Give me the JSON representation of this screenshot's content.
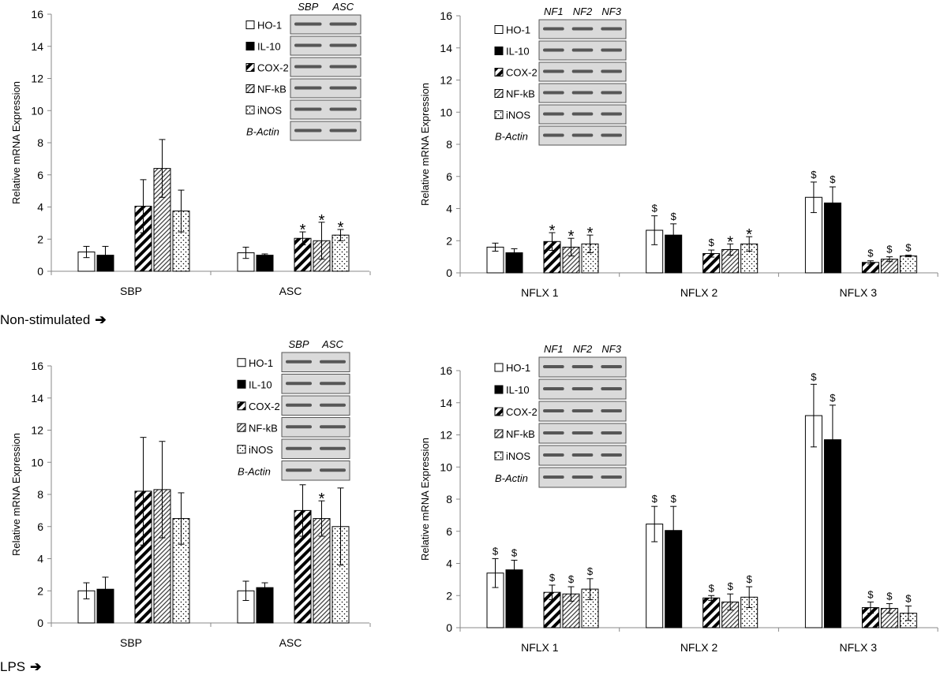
{
  "row_labels": {
    "top": "Non-stimulated",
    "bottom": "LPS",
    "arrow": "➔"
  },
  "colors": {
    "axis": "#888888",
    "bar_stroke": "#000000",
    "blot_bg": "#dadada",
    "band": "#2b2b2b"
  },
  "chart_data": [
    {
      "id": "A",
      "type": "bar",
      "row": "Non-stimulated",
      "ylabel": "Relative mRNA Expression",
      "ylim": [
        0,
        16
      ],
      "yticks": [
        0,
        2,
        4,
        6,
        8,
        10,
        12,
        14,
        16
      ],
      "categories": [
        "SBP",
        "ASC"
      ],
      "series": [
        {
          "name": "HO-1",
          "fill": "white",
          "values": [
            1.2,
            1.15
          ],
          "errors": [
            0.35,
            0.35
          ],
          "marks": [
            "",
            ""
          ]
        },
        {
          "name": "IL-10",
          "fill": "black",
          "values": [
            1.0,
            1.0
          ],
          "errors": [
            0.55,
            0.08
          ],
          "marks": [
            "",
            ""
          ]
        },
        {
          "name": "COX-2",
          "fill": "wide-hatch",
          "values": [
            4.05,
            2.05
          ],
          "errors": [
            1.65,
            0.4
          ],
          "marks": [
            "",
            "*"
          ]
        },
        {
          "name": "NF-kB",
          "fill": "fine-hatch",
          "values": [
            6.4,
            1.9
          ],
          "errors": [
            1.8,
            1.15
          ],
          "marks": [
            "",
            "*"
          ]
        },
        {
          "name": "iNOS",
          "fill": "dots",
          "values": [
            3.75,
            2.25
          ],
          "errors": [
            1.3,
            0.35
          ],
          "marks": [
            "",
            "*"
          ]
        }
      ],
      "blot": {
        "lanes": [
          "SBP",
          "ASC"
        ],
        "rows": [
          "HO-1",
          "IL-10",
          "COX-2",
          "NF-kB",
          "iNOS"
        ],
        "control": "B-Actin"
      }
    },
    {
      "id": "B",
      "type": "bar",
      "row": "Non-stimulated",
      "ylabel": "Relative mRNA Expression",
      "ylim": [
        0,
        16
      ],
      "yticks": [
        0,
        2,
        4,
        6,
        8,
        10,
        12,
        14,
        16
      ],
      "categories": [
        "NFLX 1",
        "NFLX 2",
        "NFLX 3"
      ],
      "series": [
        {
          "name": "HO-1",
          "fill": "white",
          "values": [
            1.6,
            2.65,
            4.7
          ],
          "errors": [
            0.25,
            0.9,
            0.95
          ],
          "marks": [
            "",
            "$",
            "$"
          ]
        },
        {
          "name": "IL-10",
          "fill": "black",
          "values": [
            1.25,
            2.35,
            4.35
          ],
          "errors": [
            0.25,
            0.7,
            1.0
          ],
          "marks": [
            "",
            "$",
            "$"
          ]
        },
        {
          "name": "COX-2",
          "fill": "wide-hatch",
          "values": [
            1.95,
            1.2,
            0.65
          ],
          "errors": [
            0.55,
            0.22,
            0.1
          ],
          "marks": [
            "*",
            "$",
            "$"
          ]
        },
        {
          "name": "NF-kB",
          "fill": "fine-hatch",
          "values": [
            1.6,
            1.45,
            0.85
          ],
          "errors": [
            0.55,
            0.35,
            0.15
          ],
          "marks": [
            "*",
            "*",
            "$"
          ]
        },
        {
          "name": "iNOS",
          "fill": "dots",
          "values": [
            1.8,
            1.8,
            1.05
          ],
          "errors": [
            0.55,
            0.45,
            0.05
          ],
          "marks": [
            "*",
            "*",
            "$"
          ]
        }
      ],
      "blot": {
        "lanes": [
          "NF1",
          "NF2",
          "NF3"
        ],
        "rows": [
          "HO-1",
          "IL-10",
          "COX-2",
          "NF-kB",
          "iNOS"
        ],
        "control": "B-Actin"
      }
    },
    {
      "id": "C",
      "type": "bar",
      "row": "LPS",
      "ylabel": "Relative mRNA Expression",
      "ylim": [
        0,
        16
      ],
      "yticks": [
        0,
        2,
        4,
        6,
        8,
        10,
        12,
        14,
        16
      ],
      "categories": [
        "SBP",
        "ASC"
      ],
      "series": [
        {
          "name": "HO-1",
          "fill": "white",
          "values": [
            2.0,
            2.0
          ],
          "errors": [
            0.5,
            0.6
          ],
          "marks": [
            "",
            ""
          ]
        },
        {
          "name": "IL-10",
          "fill": "black",
          "values": [
            2.1,
            2.2
          ],
          "errors": [
            0.75,
            0.3
          ],
          "marks": [
            "",
            ""
          ]
        },
        {
          "name": "COX-2",
          "fill": "wide-hatch",
          "values": [
            8.2,
            7.0
          ],
          "errors": [
            3.35,
            1.6
          ],
          "marks": [
            "",
            ""
          ]
        },
        {
          "name": "NF-kB",
          "fill": "fine-hatch",
          "values": [
            8.3,
            6.5
          ],
          "errors": [
            3.0,
            1.1
          ],
          "marks": [
            "",
            "*"
          ]
        },
        {
          "name": "iNOS",
          "fill": "dots",
          "values": [
            6.5,
            6.0
          ],
          "errors": [
            1.6,
            2.4
          ],
          "marks": [
            "",
            ""
          ]
        }
      ],
      "blot": {
        "lanes": [
          "SBP",
          "ASC"
        ],
        "rows": [
          "HO-1",
          "IL-10",
          "COX-2",
          "NF-kB",
          "iNOS"
        ],
        "control": "B-Actin"
      }
    },
    {
      "id": "D",
      "type": "bar",
      "row": "LPS",
      "ylabel": "Relative mRNA Expression",
      "ylim": [
        0,
        16
      ],
      "yticks": [
        0,
        2,
        4,
        6,
        8,
        10,
        12,
        14,
        16
      ],
      "categories": [
        "NFLX 1",
        "NFLX 2",
        "NFLX 3"
      ],
      "series": [
        {
          "name": "HO-1",
          "fill": "white",
          "values": [
            3.4,
            6.45,
            13.2
          ],
          "errors": [
            0.9,
            1.1,
            1.95
          ],
          "marks": [
            "$",
            "$",
            "$"
          ]
        },
        {
          "name": "IL-10",
          "fill": "black",
          "values": [
            3.6,
            6.05,
            11.7
          ],
          "errors": [
            0.6,
            1.5,
            2.15
          ],
          "marks": [
            "$",
            "$",
            "$"
          ]
        },
        {
          "name": "COX-2",
          "fill": "wide-hatch",
          "values": [
            2.2,
            1.85,
            1.25
          ],
          "errors": [
            0.45,
            0.15,
            0.35
          ],
          "marks": [
            "$",
            "$",
            "$"
          ]
        },
        {
          "name": "NF-kB",
          "fill": "fine-hatch",
          "values": [
            2.1,
            1.6,
            1.2
          ],
          "errors": [
            0.45,
            0.5,
            0.3
          ],
          "marks": [
            "$",
            "$",
            "$"
          ]
        },
        {
          "name": "iNOS",
          "fill": "dots",
          "values": [
            2.4,
            1.9,
            0.9
          ],
          "errors": [
            0.65,
            0.65,
            0.45
          ],
          "marks": [
            "$",
            "$",
            "$"
          ]
        }
      ],
      "blot": {
        "lanes": [
          "NF1",
          "NF2",
          "NF3"
        ],
        "rows": [
          "HO-1",
          "IL-10",
          "COX-2",
          "NF-kB",
          "iNOS"
        ],
        "control": "B-Actin"
      }
    }
  ]
}
